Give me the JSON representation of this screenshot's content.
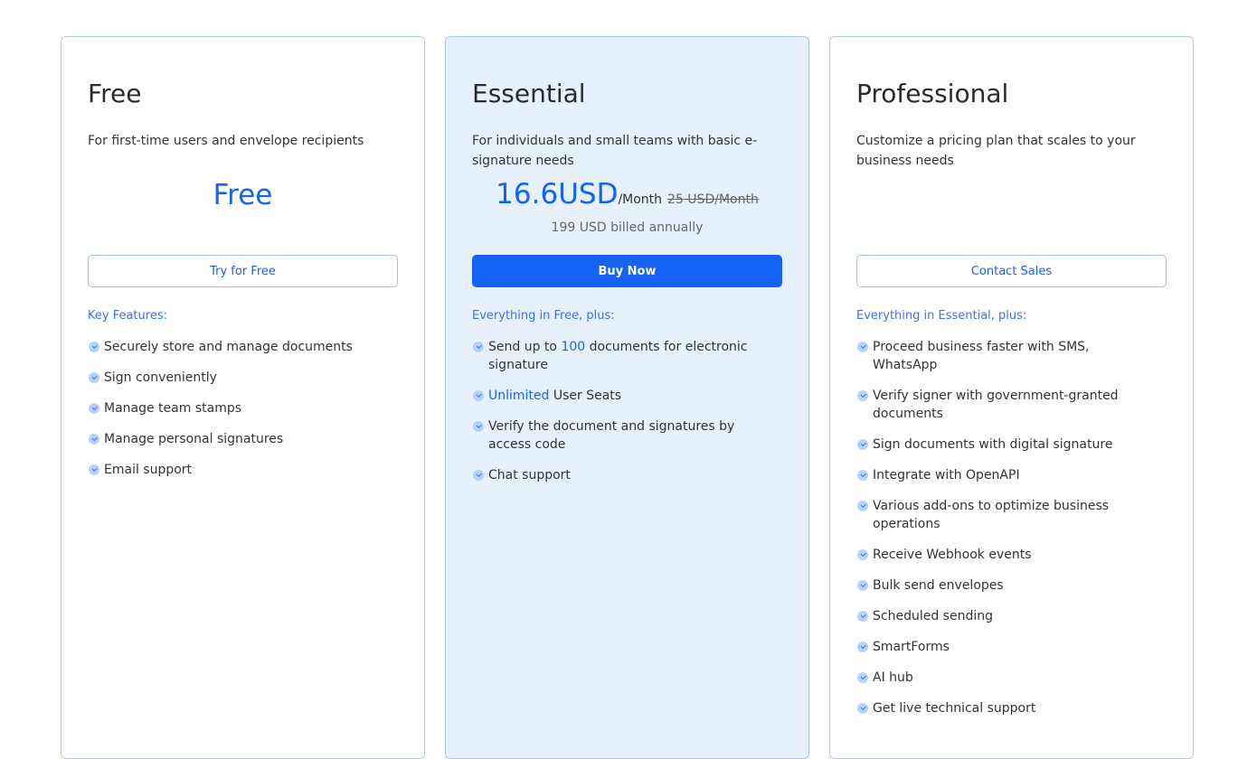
{
  "plans": [
    {
      "id": "free",
      "title": "Free",
      "description": "For first-time users and envelope recipients",
      "price": "Free",
      "button": "Try for Free",
      "features_label": "Key Features:",
      "features": [
        {
          "pre": "Securely store and manage documents"
        },
        {
          "pre": "Sign conveniently"
        },
        {
          "pre": "Manage team stamps"
        },
        {
          "pre": "Manage personal signatures"
        },
        {
          "pre": "Email support"
        }
      ]
    },
    {
      "id": "essential",
      "title": "Essential",
      "description": "For individuals and small teams with basic e-signature needs",
      "price": "16.6USD",
      "per": "/Month",
      "old_price": "25 USD/Month",
      "billed": "199 USD billed annually",
      "button": "Buy Now",
      "features_label": "Everything in Free, plus:",
      "features": [
        {
          "pre": "Send up to ",
          "hl": "100",
          "post": " documents for electronic signature"
        },
        {
          "hl": "Unlimited",
          "post": " User Seats"
        },
        {
          "pre": "Verify the document and signatures by access code"
        },
        {
          "pre": "Chat support"
        }
      ]
    },
    {
      "id": "professional",
      "title": "Professional",
      "description": "Customize a pricing plan that scales to your business needs",
      "button": "Contact Sales",
      "features_label": "Everything in Essential, plus:",
      "features": [
        {
          "pre": "Proceed business faster with SMS, WhatsApp"
        },
        {
          "pre": "Verify signer with government-granted documents"
        },
        {
          "pre": "Sign documents with digital signature"
        },
        {
          "pre": "Integrate with OpenAPI"
        },
        {
          "pre": "Various add-ons to optimize business operations"
        },
        {
          "pre": "Receive Webhook events"
        },
        {
          "pre": "Bulk send envelopes"
        },
        {
          "pre": "Scheduled sending"
        },
        {
          "pre": "SmartForms"
        },
        {
          "pre": "AI hub"
        },
        {
          "pre": "Get live technical support"
        }
      ]
    }
  ],
  "colors": {
    "accent": "#1463f3",
    "highlight_card": "#e6f1fd",
    "border": "#b9c7e6"
  }
}
